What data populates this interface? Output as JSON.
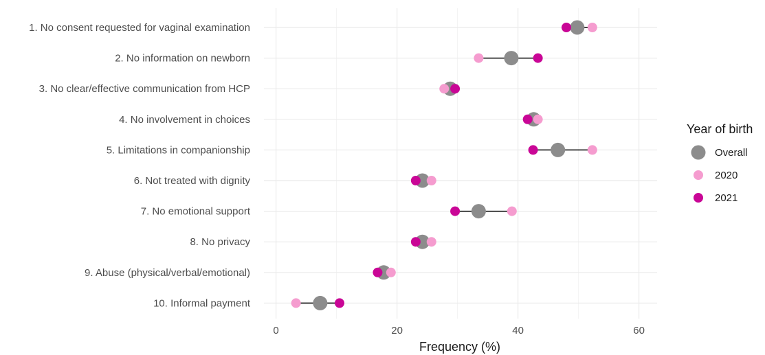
{
  "chart_data": {
    "type": "scatter",
    "xlabel": "Frequency (%)",
    "x_ticks": [
      0,
      20,
      40,
      60
    ],
    "xlim": [
      -2,
      63
    ],
    "grid": true,
    "legend": {
      "title": "Year of birth",
      "position": "right"
    },
    "categories": [
      "1. No consent requested for vaginal examination",
      "2. No information on newborn",
      "3. No clear/effective communication from HCP",
      "4. No involvement in choices",
      "5. Limitations in companionship",
      "6. Not treated with dignity",
      "7. No emotional support",
      "8. No privacy",
      "9. Abuse (physical/verbal/emotional)",
      "10. Informal payment"
    ],
    "series": [
      {
        "name": "Overall",
        "color": "#8c8c8c",
        "values": [
          49.8,
          38.9,
          28.8,
          42.6,
          46.6,
          24.2,
          33.5,
          24.2,
          17.8,
          7.3
        ]
      },
      {
        "name": "2020",
        "color": "#f59ccf",
        "values": [
          52.3,
          33.5,
          27.8,
          43.3,
          52.3,
          25.7,
          39.0,
          25.7,
          19.0,
          3.3
        ]
      },
      {
        "name": "2021",
        "color": "#c90696",
        "values": [
          48.0,
          43.3,
          29.6,
          41.6,
          42.5,
          23.1,
          29.6,
          23.1,
          16.8,
          10.5
        ]
      }
    ]
  }
}
